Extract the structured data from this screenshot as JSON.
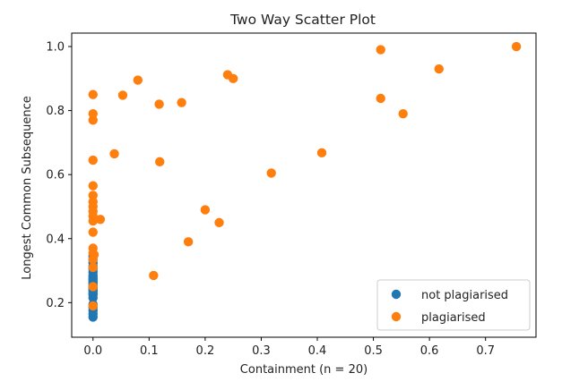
{
  "chart_data": {
    "type": "scatter",
    "title": "Two Way Scatter Plot",
    "xlabel": "Containment (n = 20)",
    "ylabel": "Longest Common Subsequence",
    "xlim": [
      -0.038,
      0.79
    ],
    "ylim": [
      0.092,
      1.042
    ],
    "xticks": [
      0.0,
      0.1,
      0.2,
      0.3,
      0.4,
      0.5,
      0.6,
      0.7
    ],
    "xtick_labels": [
      "0.0",
      "0.1",
      "0.2",
      "0.3",
      "0.4",
      "0.5",
      "0.6",
      "0.7"
    ],
    "yticks": [
      0.2,
      0.4,
      0.6,
      0.8,
      1.0
    ],
    "ytick_labels": [
      "0.2",
      "0.4",
      "0.6",
      "0.8",
      "1.0"
    ],
    "grid": false,
    "legend_position": "lower-right",
    "series": [
      {
        "name": "not plagiarised",
        "color": "#1f77b4",
        "x": [
          0.0,
          0.0,
          0.0,
          0.0,
          0.0,
          0.0,
          0.0,
          0.0,
          0.0,
          0.0,
          0.0,
          0.0,
          0.0,
          0.0,
          0.0,
          0.0,
          0.0,
          0.0,
          0.0,
          0.0,
          0.0,
          0.0,
          0.0,
          0.0,
          0.0
        ],
        "y": [
          0.155,
          0.165,
          0.175,
          0.185,
          0.195,
          0.215,
          0.225,
          0.235,
          0.245,
          0.255,
          0.265,
          0.275,
          0.285,
          0.295,
          0.305,
          0.315,
          0.325,
          0.335,
          0.345,
          0.228,
          0.24,
          0.25,
          0.26,
          0.27,
          0.28
        ]
      },
      {
        "name": "plagiarised",
        "color": "#ff7f0e",
        "x": [
          0.0,
          0.0,
          0.0,
          0.0,
          0.0,
          0.0,
          0.0,
          0.0,
          0.0,
          0.0,
          0.0,
          0.0,
          0.0,
          0.0,
          0.0,
          0.0,
          0.0,
          0.0,
          0.002,
          0.013,
          0.038,
          0.053,
          0.08,
          0.108,
          0.118,
          0.119,
          0.158,
          0.17,
          0.2,
          0.225,
          0.24,
          0.25,
          0.318,
          0.408,
          0.513,
          0.513,
          0.553,
          0.617,
          0.755
        ],
        "y": [
          0.85,
          0.79,
          0.77,
          0.645,
          0.565,
          0.535,
          0.515,
          0.5,
          0.485,
          0.47,
          0.455,
          0.42,
          0.37,
          0.355,
          0.335,
          0.31,
          0.25,
          0.19,
          0.35,
          0.46,
          0.665,
          0.848,
          0.895,
          0.285,
          0.82,
          0.64,
          0.825,
          0.39,
          0.49,
          0.45,
          0.912,
          0.9,
          0.605,
          0.668,
          0.99,
          0.838,
          0.79,
          0.93,
          1.0
        ]
      }
    ]
  }
}
